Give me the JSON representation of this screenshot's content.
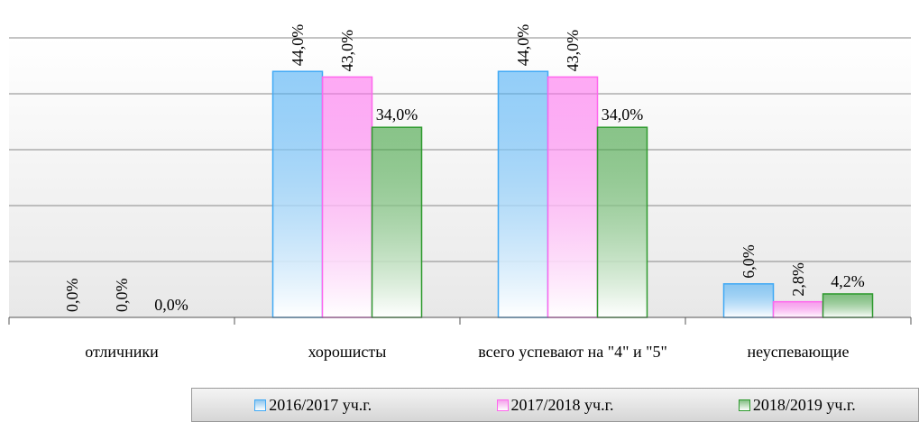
{
  "chart_data": {
    "type": "bar",
    "categories": [
      "отличники",
      "хорошисты",
      "всего успевают на \"4\" и \"5\"",
      "неуспевающие"
    ],
    "series": [
      {
        "name": "2016/2017  уч.г.",
        "color": "#3fa9f5",
        "values": [
          0,
          44,
          44,
          6
        ],
        "value_labels": [
          "0,0%",
          "44,0%",
          "44,0%",
          "6,0%"
        ]
      },
      {
        "name": "2017/2018  уч.г.",
        "color": "#ff66ee",
        "values": [
          0,
          43,
          43,
          2.8
        ],
        "value_labels": [
          "0,0%",
          "43,0%",
          "43,0%",
          "2,8%"
        ]
      },
      {
        "name": "2018/2019  уч.г.",
        "color": "#2e9a2e",
        "values": [
          0,
          34,
          34,
          4.2
        ],
        "value_labels": [
          "0,0%",
          "34,0%",
          "34,0%",
          "4,2%"
        ]
      }
    ],
    "ylim": [
      0,
      50
    ],
    "yticks": [
      0,
      10,
      20,
      30,
      40,
      50
    ],
    "grid": true
  }
}
